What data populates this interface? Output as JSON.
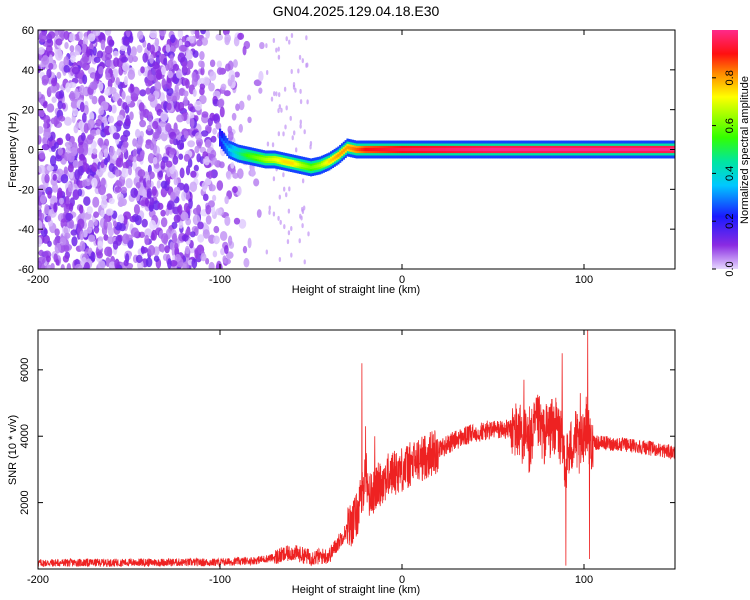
{
  "figure": {
    "title": "GN04.2025.129.04.18.E30"
  },
  "chart_data": [
    {
      "type": "heatmap",
      "xlabel": "Height of straight line (km)",
      "ylabel": "Frequency (Hz)",
      "xlim": [
        -200,
        150
      ],
      "ylim": [
        -60,
        60
      ],
      "x_ticks": [
        -200,
        -100,
        0,
        100
      ],
      "y_ticks": [
        -60,
        -40,
        -20,
        0,
        20,
        40,
        60
      ],
      "colorbar": {
        "label": "Normalized spectral amplitude",
        "range": [
          0,
          1
        ],
        "ticks": [
          0.0,
          0.2,
          0.4,
          0.6,
          0.8
        ]
      },
      "noise_region_x": [
        -200,
        -70
      ],
      "ridge": {
        "x": [
          -100,
          -95,
          -90,
          -85,
          -80,
          -75,
          -70,
          -65,
          -60,
          -55,
          -50,
          -45,
          -40,
          -35,
          -30,
          -25,
          -20,
          0,
          50,
          100,
          150
        ],
        "frequency": [
          6,
          0,
          -2,
          -3,
          -4,
          -5,
          -5,
          -6,
          -7,
          -8,
          -9,
          -8,
          -6,
          -3,
          1,
          0,
          0,
          0,
          0,
          0,
          0
        ],
        "amplitude": [
          0.2,
          0.3,
          0.4,
          0.5,
          0.55,
          0.6,
          0.65,
          0.7,
          0.7,
          0.6,
          0.55,
          0.6,
          0.7,
          0.75,
          0.75,
          0.8,
          0.85,
          0.9,
          0.95,
          0.95,
          0.95
        ]
      }
    },
    {
      "type": "line",
      "xlabel": "Height of straight line (km)",
      "ylabel": "SNR (10 * v/v)",
      "xlim": [
        -200,
        150
      ],
      "ylim": [
        0,
        7200
      ],
      "x_ticks": [
        -200,
        -100,
        0,
        100
      ],
      "y_ticks": [
        2000,
        4000,
        6000
      ],
      "color": "#ee2222",
      "series": [
        {
          "x": [
            -200,
            -180,
            -160,
            -140,
            -120,
            -100,
            -80,
            -70,
            -60,
            -50,
            -40,
            -30,
            -25,
            -22,
            -20,
            -18,
            -15,
            -10,
            -5,
            0,
            10,
            20,
            30,
            40,
            50,
            60,
            65,
            68,
            70,
            72,
            75,
            78,
            80,
            85,
            88,
            90,
            95,
            98,
            100,
            102,
            103,
            105,
            110,
            120,
            130,
            140,
            150
          ],
          "y": [
            180,
            190,
            190,
            200,
            200,
            200,
            260,
            350,
            500,
            350,
            400,
            1200,
            1600,
            2200,
            3000,
            2200,
            2400,
            2700,
            2900,
            3000,
            3300,
            3600,
            3900,
            4100,
            4200,
            4200,
            4150,
            3900,
            3700,
            4100,
            4400,
            4000,
            4200,
            4300,
            3800,
            3200,
            4000,
            3500,
            4200,
            4400,
            3900,
            3800,
            3800,
            3750,
            3700,
            3600,
            3500
          ],
          "spikes": [
            {
              "x": -22,
              "y": 6200
            },
            {
              "x": -20,
              "y": 4300
            },
            {
              "x": -15,
              "y": 4000
            },
            {
              "x": 67,
              "y": 5700
            },
            {
              "x": 70,
              "y": 4900
            },
            {
              "x": 88,
              "y": 6500
            },
            {
              "x": 90,
              "y": 100
            },
            {
              "x": 98,
              "y": 5300
            },
            {
              "x": 102,
              "y": 7200
            },
            {
              "x": 103,
              "y": 300
            }
          ]
        }
      ]
    }
  ]
}
